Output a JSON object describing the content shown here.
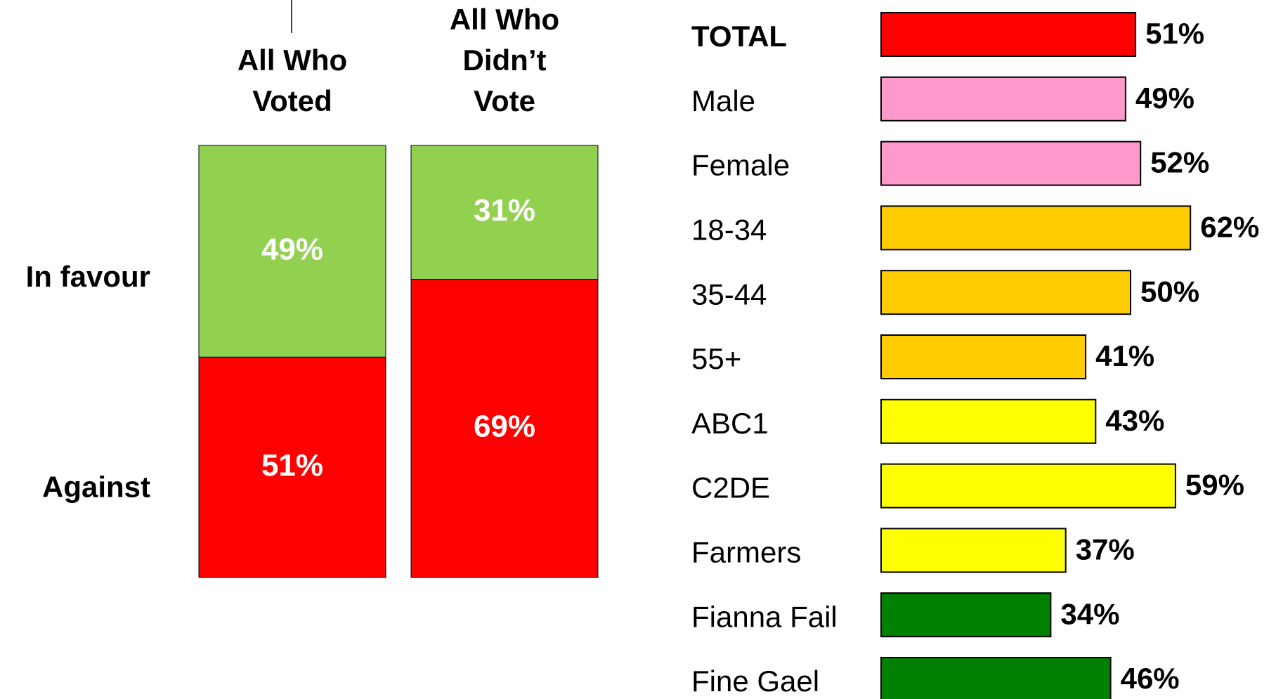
{
  "chart_data": [
    {
      "type": "stacked_bar",
      "categories": [
        "All Who\nVoted",
        "All Who\nDidn’t\nVote"
      ],
      "series": [
        {
          "name": "In favour",
          "color": "#92d050",
          "values": [
            49,
            31
          ],
          "value_labels": [
            "49%",
            "31%"
          ]
        },
        {
          "name": "Against",
          "color": "#ff0000",
          "values": [
            51,
            69
          ],
          "value_labels": [
            "51%",
            "69%"
          ]
        }
      ]
    },
    {
      "type": "hbar",
      "categories": [
        "TOTAL",
        "Male",
        "Female",
        "18-34",
        "35-44",
        "55+",
        "ABC1",
        "C2DE",
        "Farmers",
        "Fianna Fail",
        "Fine Gael"
      ],
      "values": [
        51,
        49,
        52,
        62,
        50,
        41,
        43,
        59,
        37,
        34,
        46
      ],
      "value_labels": [
        "51%",
        "49%",
        "52%",
        "62%",
        "50%",
        "41%",
        "43%",
        "59%",
        "37%",
        "34%",
        "46%"
      ],
      "colors": [
        "#ff0000",
        "#ff99cc",
        "#ff99cc",
        "#ffcc00",
        "#ffcc00",
        "#ffcc00",
        "#ffff00",
        "#ffff00",
        "#ffff00",
        "#008000",
        "#008000"
      ]
    }
  ]
}
